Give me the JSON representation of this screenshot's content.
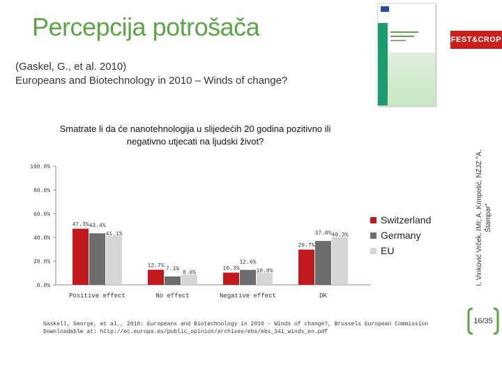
{
  "slide": {
    "title": "Percepcija potrošača",
    "subtitle_line1": "(Gaskel, G., et al. 2010)",
    "subtitle_line2": "Europeans and Biotechnology in 2010 – Winds of change?",
    "logo_text": "FEST&CROP",
    "side_credit": "I. Vinković Vrček, IMI; A. Krmpotić, NZJZ \"A. Štampar\"",
    "page_number": "16/35",
    "footer_line1": "Gaskell, George, et al., 2010: Europeans and Biotechnology in 2010 – Winds of change?, Brussels European Commission",
    "footer_line2": "Downloadable at: http://ec.europa.eu/public_opinion/archives/ebs/ebs_341_winds_en.pdf"
  },
  "colors": {
    "title": "#5aa545",
    "switzerland": "#c0181c",
    "germany": "#6d6d6d",
    "eu": "#d6d6d6"
  },
  "chart_data": {
    "type": "bar",
    "title": "Smatrate li da će nanotehnologija u slijedećih 20 godina pozitivno ili negativno utjecati na ljudski život?",
    "categories": [
      "Positive effect",
      "No effect",
      "Negative effect",
      "DK"
    ],
    "series": [
      {
        "name": "Switzerland",
        "values": [
          47.3,
          12.7,
          10.3,
          29.7
        ],
        "labels": [
          "47.3%",
          "12.7%",
          "10.3%",
          "29.7%"
        ]
      },
      {
        "name": "Germany",
        "values": [
          43.4,
          7.1,
          12.6,
          37.0
        ],
        "labels": [
          "43.4%",
          "7.1%",
          "12.6%",
          "37.0%"
        ]
      },
      {
        "name": "EU",
        "values": [
          41.1,
          8.6,
          10.0,
          40.3
        ],
        "labels": [
          "41.1%",
          "8.6%",
          "10.0%",
          "40.3%"
        ]
      }
    ],
    "yticks": [
      "100.0%",
      "80.0%",
      "60.0%",
      "40.0%",
      "20.0%",
      "0.0%"
    ],
    "ylim": [
      0,
      100
    ],
    "grid": false,
    "legend": "right"
  }
}
